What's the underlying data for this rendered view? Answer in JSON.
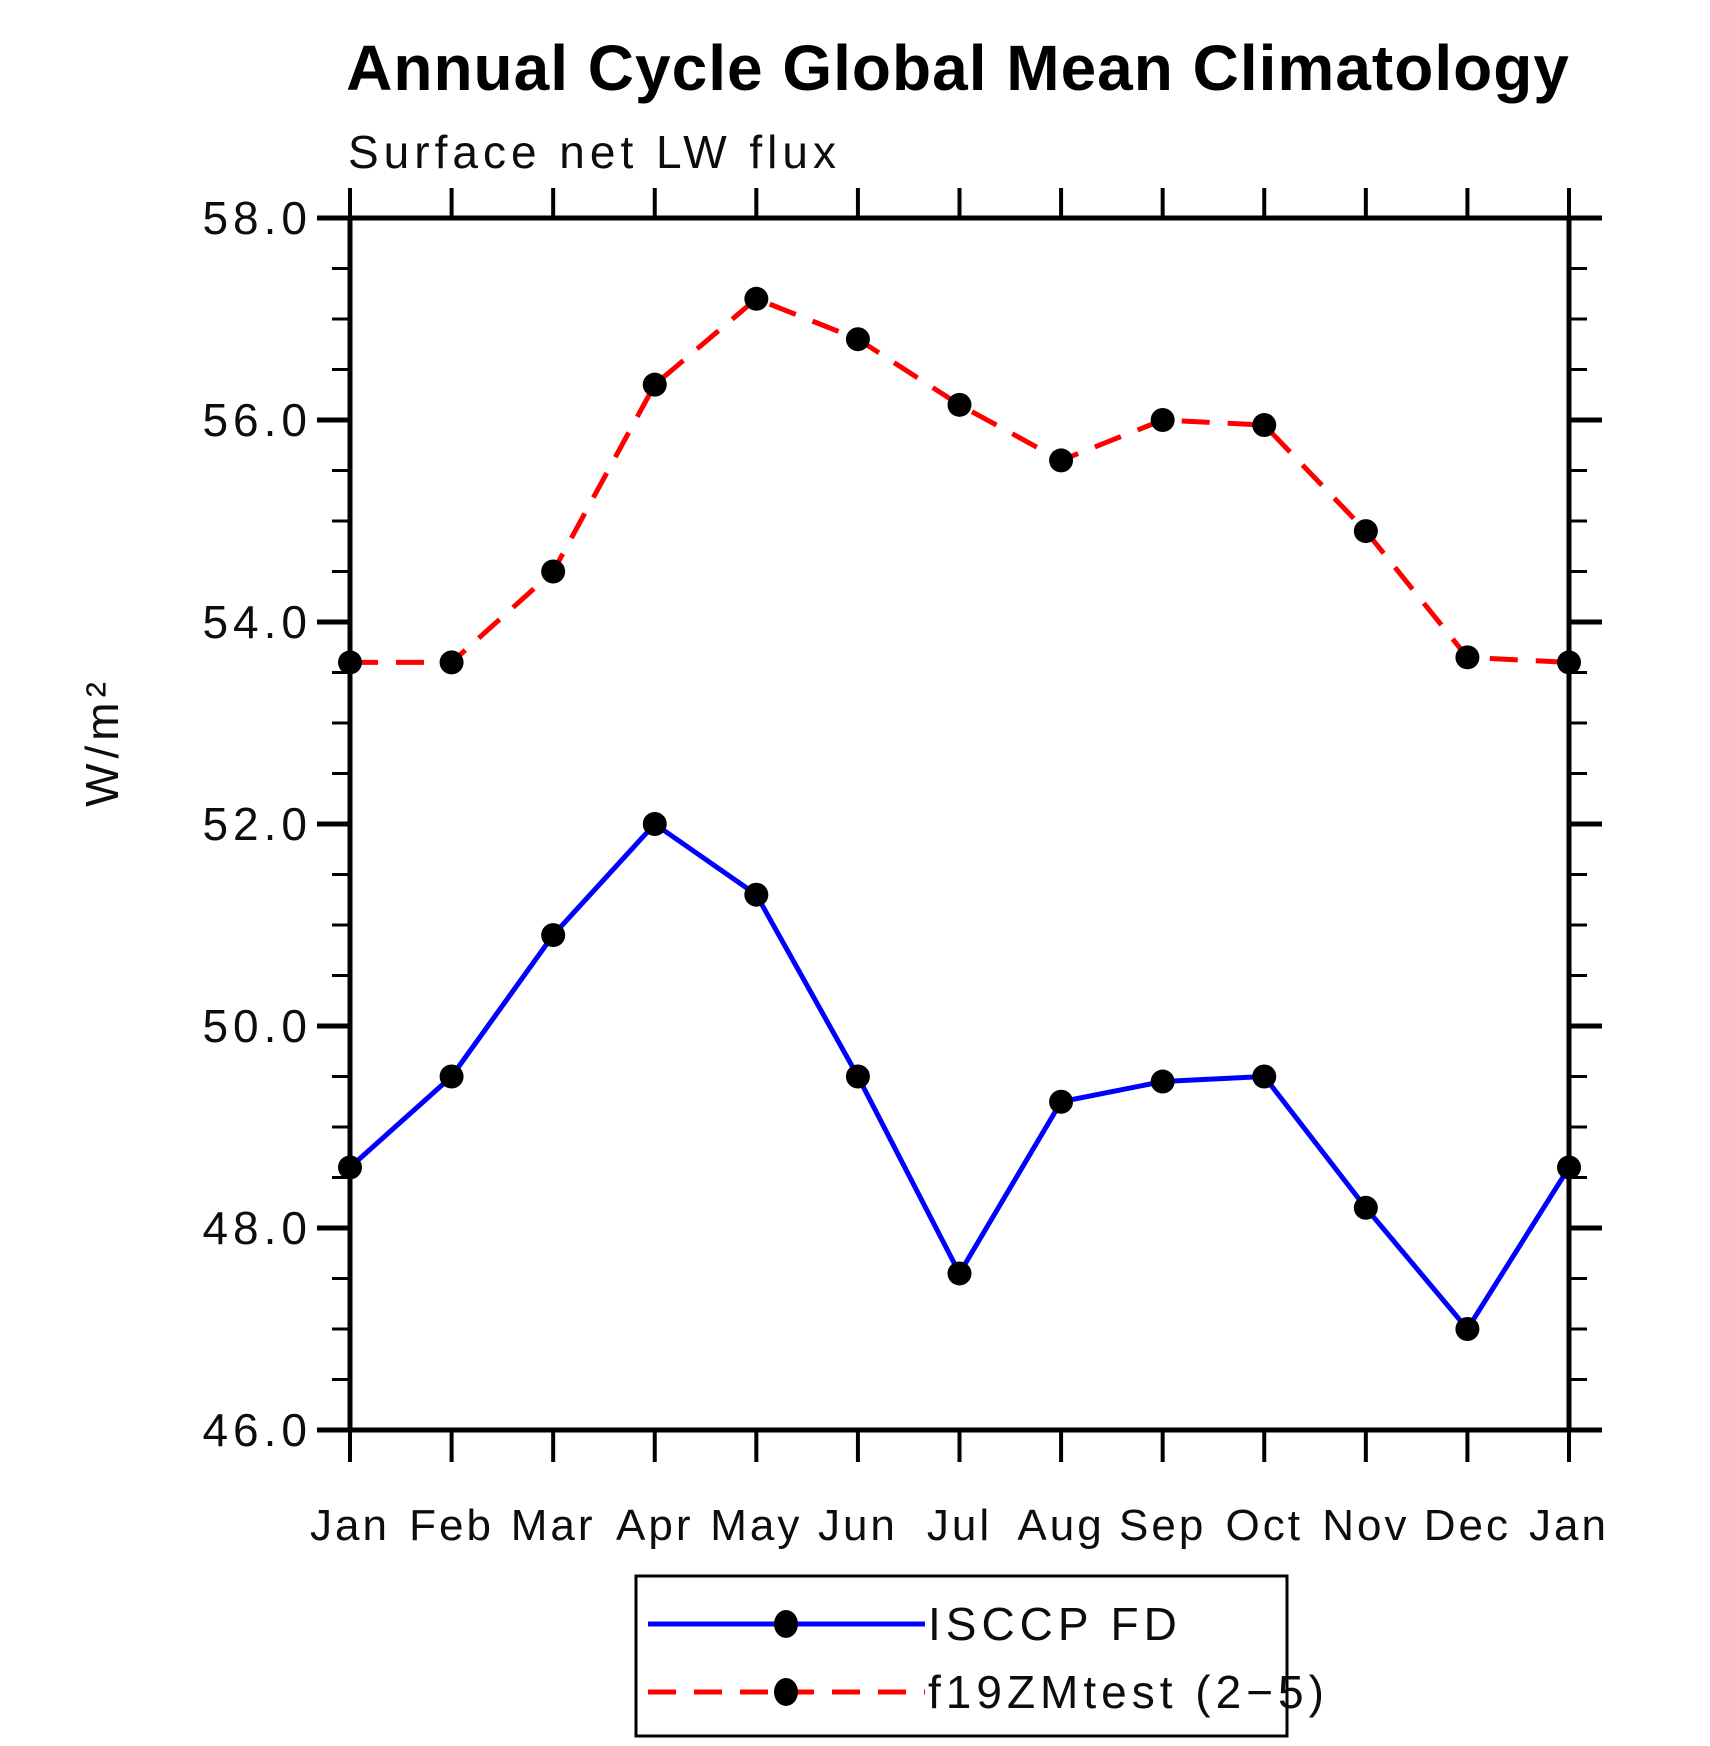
{
  "title": "Annual Cycle Global Mean Climatology",
  "subtitle": "Surface net LW flux",
  "chart_data": {
    "type": "line",
    "title": "Annual Cycle Global Mean Climatology",
    "subtitle": "Surface net LW flux",
    "xlabel": "",
    "ylabel": "W/m²",
    "categories": [
      "Jan",
      "Feb",
      "Mar",
      "Apr",
      "May",
      "Jun",
      "Jul",
      "Aug",
      "Sep",
      "Oct",
      "Nov",
      "Dec",
      "Jan"
    ],
    "ylim": [
      46.0,
      58.0
    ],
    "ytick_major_step": 2.0,
    "ytick_minor_step": 0.5,
    "ytick_labels": [
      "58.0",
      "56.0",
      "54.0",
      "52.0",
      "50.0",
      "48.0",
      "46.0"
    ],
    "grid": false,
    "legend_position": "bottom-center",
    "marker_color": "#000000",
    "axis_color": "#000000",
    "series": [
      {
        "name": "ISCCP FD",
        "color": "#0000ff",
        "style": "solid",
        "marker": "circle",
        "values": [
          48.6,
          49.5,
          50.9,
          52.0,
          51.3,
          49.5,
          47.55,
          49.25,
          49.45,
          49.5,
          48.2,
          47.0,
          48.6
        ]
      },
      {
        "name": "f19ZMtest (2−5)",
        "color": "#ff0000",
        "style": "dashed",
        "marker": "circle",
        "values": [
          53.6,
          53.6,
          54.5,
          56.35,
          57.2,
          56.8,
          56.15,
          55.6,
          56.0,
          55.95,
          54.9,
          53.65,
          53.6
        ]
      }
    ]
  }
}
